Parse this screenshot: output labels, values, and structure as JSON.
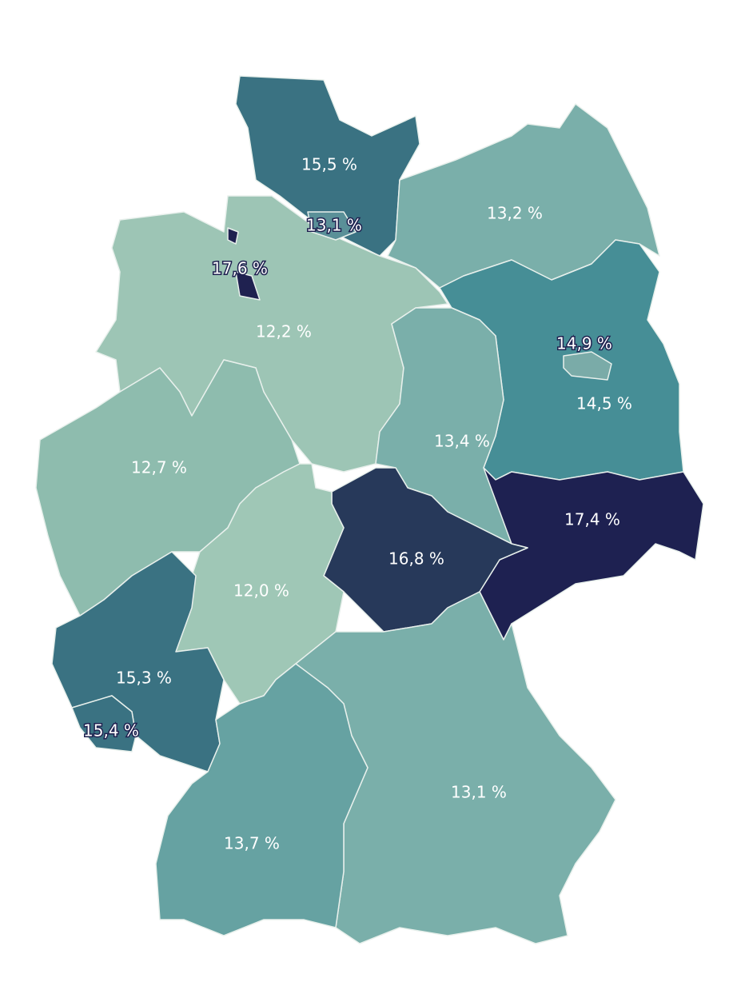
{
  "map": {
    "regions": [
      {
        "value": 15.5,
        "label": "15,5 %",
        "color": "#3a7282"
      },
      {
        "value": 13.1,
        "label": "13,1 %",
        "color": "#5a9098"
      },
      {
        "value": 13.2,
        "label": "13,2 %",
        "color": "#7aafaa"
      },
      {
        "value": 17.6,
        "label": "17,6 %",
        "color": "#1f2150"
      },
      {
        "value": 12.2,
        "label": "12,2 %",
        "color": "#9dc5b5"
      },
      {
        "value": 14.9,
        "label": "14,9 %",
        "color": "#7aaba8"
      },
      {
        "value": 14.5,
        "label": "14,5 %",
        "color": "#468e96"
      },
      {
        "value": 13.4,
        "label": "13,4 %",
        "color": "#7aafaa"
      },
      {
        "value": 12.7,
        "label": "12,7 %",
        "color": "#8ebcae"
      },
      {
        "value": 17.4,
        "label": "17,4 %",
        "color": "#1e2151"
      },
      {
        "value": 16.8,
        "label": "16,8 %",
        "color": "#27395a"
      },
      {
        "value": 12.0,
        "label": "12,0 %",
        "color": "#9fc7b6"
      },
      {
        "value": 15.3,
        "label": "15,3 %",
        "color": "#3a7282"
      },
      {
        "value": 15.4,
        "label": "15,4 %",
        "color": "#3a7282"
      },
      {
        "value": 13.1,
        "label": "13,1 %",
        "color": "#7aafaa"
      },
      {
        "value": 13.7,
        "label": "13,7 %",
        "color": "#66a2a2"
      }
    ]
  }
}
